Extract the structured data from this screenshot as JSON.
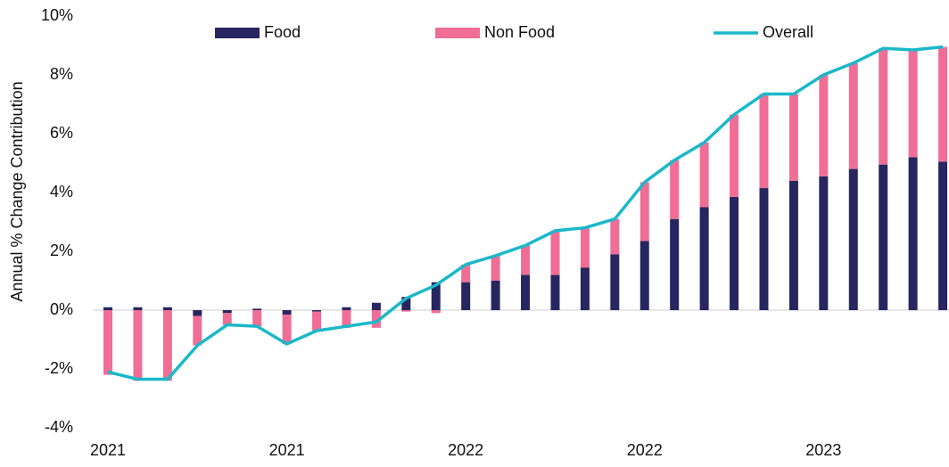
{
  "chart_data": {
    "type": "bar",
    "y_label": "Annual % Change Contribution",
    "categories": [
      "2021",
      null,
      null,
      null,
      null,
      null,
      "2021",
      null,
      null,
      null,
      null,
      null,
      "2022",
      null,
      null,
      null,
      null,
      null,
      "2022",
      null,
      null,
      null,
      null,
      null,
      "2023",
      null,
      null,
      null,
      null
    ],
    "series": [
      {
        "name": "Food",
        "color": "#272660",
        "kind": "bar",
        "values": [
          0.1,
          0.1,
          0.1,
          -0.2,
          -0.1,
          0.05,
          -0.15,
          -0.05,
          0.1,
          0.25,
          0.45,
          0.95,
          0.95,
          1.0,
          1.2,
          1.2,
          1.45,
          1.9,
          2.35,
          3.1,
          3.5,
          3.85,
          4.15,
          4.4,
          4.55,
          4.8,
          4.95,
          5.2,
          5.05
        ]
      },
      {
        "name": "Non Food",
        "color": "#f06e96",
        "kind": "bar",
        "values": [
          -2.2,
          -2.4,
          -2.4,
          -1.0,
          -0.4,
          -0.55,
          -1.0,
          -0.65,
          -0.6,
          -0.6,
          -0.05,
          -0.1,
          0.6,
          0.85,
          1.0,
          1.5,
          1.35,
          1.2,
          2.0,
          2.0,
          2.2,
          2.8,
          3.2,
          2.95,
          3.45,
          3.6,
          3.95,
          3.65,
          3.9
        ]
      },
      {
        "name": "Overall",
        "color": "#1ab8c8",
        "kind": "line",
        "values": [
          -2.1,
          -2.35,
          -2.35,
          -1.2,
          -0.5,
          -0.55,
          -1.15,
          -0.7,
          -0.55,
          -0.4,
          0.4,
          0.85,
          1.55,
          1.85,
          2.2,
          2.7,
          2.8,
          3.1,
          4.35,
          5.1,
          5.7,
          6.65,
          7.35,
          7.35,
          8.0,
          8.4,
          8.9,
          8.85,
          8.95
        ]
      }
    ],
    "ylim": [
      -4,
      10
    ],
    "yticks": [
      {
        "value": -4,
        "label": "-4%"
      },
      {
        "value": -2,
        "label": "-2%"
      },
      {
        "value": 0,
        "label": "0%"
      },
      {
        "value": 2,
        "label": "2%"
      },
      {
        "value": 4,
        "label": "4%"
      },
      {
        "value": 6,
        "label": "6%"
      },
      {
        "value": 8,
        "label": "8%"
      },
      {
        "value": 10,
        "label": "10%"
      }
    ],
    "legend": "top",
    "grid": false
  }
}
